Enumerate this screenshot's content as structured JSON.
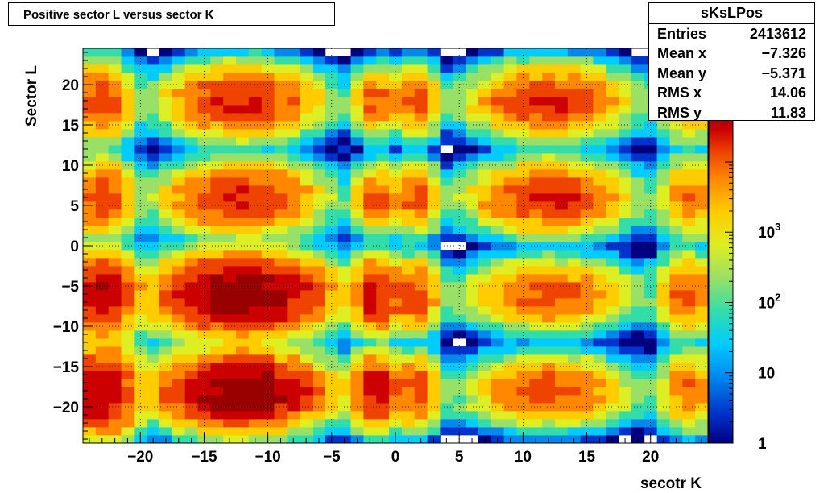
{
  "title": "Positive sector L versus sector K",
  "stats": {
    "name": "sKsLPos",
    "rows": [
      {
        "label": "Entries",
        "value": "2413612"
      },
      {
        "label": "Mean x",
        "value": "−7.326"
      },
      {
        "label": "Mean y",
        "value": "−5.371"
      },
      {
        "label": "RMS x",
        "value": "14.06"
      },
      {
        "label": "RMS y",
        "value": "11.83"
      }
    ]
  },
  "chart_data": {
    "type": "heatmap",
    "title": "Positive sector L versus sector K",
    "xlabel": "secotr K",
    "ylabel": "Sector L",
    "xlim": [
      -24.5,
      24.5
    ],
    "ylim": [
      -24.5,
      24.5
    ],
    "x_ticks": [
      "−20",
      "−15",
      "−10",
      "−5",
      "0",
      "5",
      "10",
      "15",
      "20"
    ],
    "y_ticks": [
      "−20",
      "−15",
      "−10",
      "−5",
      "0",
      "5",
      "10",
      "15",
      "20"
    ],
    "grid": true,
    "z_scale": "log",
    "z_range": [
      1,
      50000
    ],
    "z_ticks": [
      "1",
      "10",
      "10^2",
      "10^3"
    ],
    "colormap": [
      "#000080",
      "#0033cc",
      "#0088ee",
      "#00ccff",
      "#33ddaa",
      "#99e066",
      "#ddee22",
      "#ffcc00",
      "#ff8800",
      "#ee4400",
      "#cc0000",
      "#990000"
    ],
    "blobs": [
      {
        "k": -23,
        "l": -18,
        "peak": 20000,
        "rk": 1.8,
        "rl": 3.5
      },
      {
        "k": -12,
        "l": -18,
        "peak": 40000,
        "rk": 4.0,
        "rl": 2.8
      },
      {
        "k": -1.5,
        "l": -18,
        "peak": 15000,
        "rk": 1.3,
        "rl": 2.8
      },
      {
        "k": 1.5,
        "l": -18,
        "peak": 6000,
        "rk": 1.3,
        "rl": 2.8
      },
      {
        "k": 12,
        "l": -18,
        "peak": 5000,
        "rk": 4.0,
        "rl": 2.6
      },
      {
        "k": 23,
        "l": -18,
        "peak": 3000,
        "rk": 1.6,
        "rl": 3.0
      },
      {
        "k": -23,
        "l": -6,
        "peak": 20000,
        "rk": 1.8,
        "rl": 3.2
      },
      {
        "k": -12,
        "l": -6,
        "peak": 40000,
        "rk": 4.2,
        "rl": 3.0
      },
      {
        "k": -1.5,
        "l": -6,
        "peak": 15000,
        "rk": 1.3,
        "rl": 2.8
      },
      {
        "k": 1.5,
        "l": -6,
        "peak": 6000,
        "rk": 1.3,
        "rl": 2.8
      },
      {
        "k": 12,
        "l": -6,
        "peak": 5000,
        "rk": 4.0,
        "rl": 2.6
      },
      {
        "k": 23,
        "l": -6,
        "peak": 4000,
        "rk": 1.6,
        "rl": 3.0
      },
      {
        "k": -23,
        "l": 6,
        "peak": 6000,
        "rk": 1.6,
        "rl": 3.0
      },
      {
        "k": -12,
        "l": 6,
        "peak": 10000,
        "rk": 3.8,
        "rl": 2.7
      },
      {
        "k": -1.5,
        "l": 6,
        "peak": 4000,
        "rk": 1.2,
        "rl": 2.6
      },
      {
        "k": 1.5,
        "l": 6,
        "peak": 5000,
        "rk": 1.3,
        "rl": 2.6
      },
      {
        "k": 12,
        "l": 6,
        "peak": 9000,
        "rk": 3.8,
        "rl": 2.7
      },
      {
        "k": 23,
        "l": 6,
        "peak": 3000,
        "rk": 1.6,
        "rl": 3.0
      },
      {
        "k": -23,
        "l": 18,
        "peak": 6000,
        "rk": 1.6,
        "rl": 3.0
      },
      {
        "k": -12,
        "l": 18,
        "peak": 10000,
        "rk": 3.8,
        "rl": 2.7
      },
      {
        "k": -1.5,
        "l": 18,
        "peak": 4000,
        "rk": 1.2,
        "rl": 2.6
      },
      {
        "k": 1.5,
        "l": 18,
        "peak": 5000,
        "rk": 1.3,
        "rl": 2.6
      },
      {
        "k": 12,
        "l": 18,
        "peak": 9000,
        "rk": 3.8,
        "rl": 2.7
      },
      {
        "k": 23,
        "l": 18,
        "peak": 3000,
        "rk": 1.6,
        "rl": 3.0
      }
    ]
  }
}
